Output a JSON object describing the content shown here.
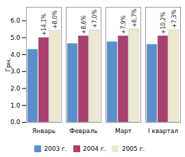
{
  "chart_data": {
    "type": "bar",
    "categories": [
      "Январь",
      "Февраль",
      "Март",
      "I квартал"
    ],
    "ylabel": "Грн.",
    "ylim": [
      0,
      6.8
    ],
    "yticks": [
      0,
      1,
      2,
      3,
      4,
      5,
      6
    ],
    "legend": "bottom",
    "series": [
      {
        "name": "2003 г.",
        "color": "#5b8fcc",
        "values": [
          4.3,
          4.65,
          4.75,
          4.6
        ]
      },
      {
        "name": "2004 г.",
        "color": "#a84070",
        "values": [
          5.0,
          5.1,
          5.1,
          5.1
        ],
        "annotations": [
          "+14,1%",
          "+8,6%",
          "+7,9%",
          "+10,2%"
        ]
      },
      {
        "name": "2005 г.",
        "color": "#ede8d0",
        "values": [
          5.4,
          5.45,
          5.5,
          5.45
        ],
        "annotations": [
          "+8,0%",
          "+7,0%",
          "+6,7%",
          "+7,3%"
        ]
      }
    ]
  }
}
